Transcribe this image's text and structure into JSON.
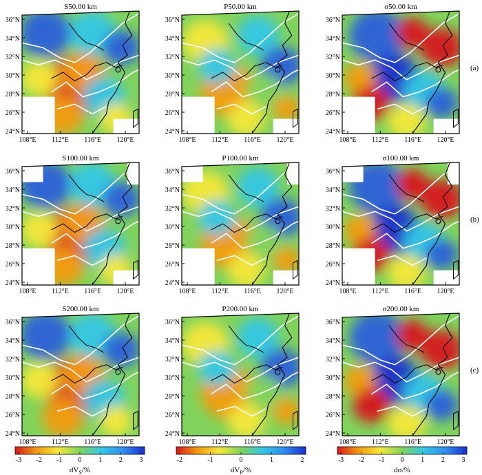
{
  "figure": {
    "panels": [
      {
        "title": "S50.00 km",
        "var": "S",
        "row": 0,
        "col": 0
      },
      {
        "title": "P50.00 km",
        "var": "P",
        "row": 0,
        "col": 1
      },
      {
        "title": "σ50.00 km",
        "var": "sigma",
        "row": 0,
        "col": 2
      },
      {
        "title": "S100.00 km",
        "var": "S",
        "row": 1,
        "col": 0
      },
      {
        "title": "P100.00 km",
        "var": "P",
        "row": 1,
        "col": 1
      },
      {
        "title": "σ100.00 km",
        "var": "sigma",
        "row": 1,
        "col": 2
      },
      {
        "title": "S200.00 km",
        "var": "S",
        "row": 2,
        "col": 0
      },
      {
        "title": "P200.00 km",
        "var": "P",
        "row": 2,
        "col": 1
      },
      {
        "title": "σ200.00 km",
        "var": "sigma",
        "row": 2,
        "col": 2
      }
    ],
    "row_labels": [
      "(a)",
      "(b)",
      "(c)"
    ],
    "lat_labels": [
      "36°N",
      "34°N",
      "32°N",
      "30°N",
      "28°N",
      "26°N",
      "24°N"
    ],
    "lon_labels": [
      "108°E",
      "112°E",
      "116°E",
      "120°E"
    ],
    "colorbars": [
      {
        "label": "dVs/%",
        "label_main": "dV",
        "label_sub": "S",
        "label_tail": "/%",
        "ticks": [
          "-3",
          "-2",
          "-1",
          "0",
          "1",
          "2",
          "3"
        ]
      },
      {
        "label": "dVp/%",
        "label_main": "dV",
        "label_sub": "P",
        "label_tail": "/%",
        "ticks": [
          "-2",
          "-1",
          "0",
          "1",
          "2"
        ]
      },
      {
        "label": "dσ/%",
        "label_main": "dσ",
        "label_sub": "",
        "label_tail": "/%",
        "ticks": [
          "-3",
          "-2",
          "-1",
          "0",
          "1",
          "2",
          "3"
        ]
      }
    ],
    "colors": {
      "red": "#d7191c",
      "orange": "#f39c12",
      "yellow": "#f5e83a",
      "green": "#7fd35c",
      "cyan": "#33c7e6",
      "blue": "#2b5fd9",
      "deep_blue": "#1c2fcf",
      "coast": "#000000",
      "boundary": "#ffffff"
    }
  }
}
